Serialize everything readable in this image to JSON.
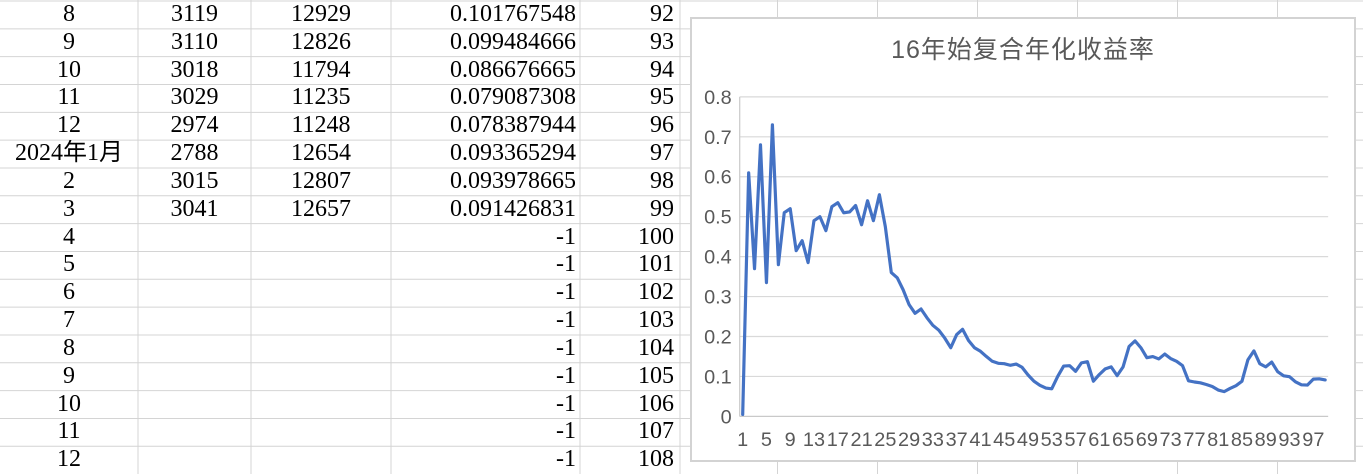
{
  "table": {
    "rows": [
      [
        "8",
        "3119",
        "12929",
        "0.101767548",
        "92"
      ],
      [
        "9",
        "3110",
        "12826",
        "0.099484666",
        "93"
      ],
      [
        "10",
        "3018",
        "11794",
        "0.086676665",
        "94"
      ],
      [
        "11",
        "3029",
        "11235",
        "0.079087308",
        "95"
      ],
      [
        "12",
        "2974",
        "11248",
        "0.078387944",
        "96"
      ],
      [
        "2024年1月",
        "2788",
        "12654",
        "0.093365294",
        "97"
      ],
      [
        "2",
        "3015",
        "12807",
        "0.093978665",
        "98"
      ],
      [
        "3",
        "3041",
        "12657",
        "0.091426831",
        "99"
      ],
      [
        "4",
        "",
        "",
        "-1",
        "100"
      ],
      [
        "5",
        "",
        "",
        "-1",
        "101"
      ],
      [
        "6",
        "",
        "",
        "-1",
        "102"
      ],
      [
        "7",
        "",
        "",
        "-1",
        "103"
      ],
      [
        "8",
        "",
        "",
        "-1",
        "104"
      ],
      [
        "9",
        "",
        "",
        "-1",
        "105"
      ],
      [
        "10",
        "",
        "",
        "-1",
        "106"
      ],
      [
        "11",
        "",
        "",
        "-1",
        "107"
      ],
      [
        "12",
        "",
        "",
        "-1",
        "108"
      ]
    ]
  },
  "chart_data": {
    "type": "line",
    "title": "16年始复合年化收益率",
    "x_range": [
      1,
      99
    ],
    "values": [
      0.005,
      0.61,
      0.37,
      0.68,
      0.335,
      0.73,
      0.38,
      0.51,
      0.52,
      0.415,
      0.44,
      0.385,
      0.49,
      0.5,
      0.465,
      0.525,
      0.535,
      0.51,
      0.512,
      0.528,
      0.48,
      0.54,
      0.49,
      0.555,
      0.475,
      0.36,
      0.347,
      0.317,
      0.28,
      0.258,
      0.269,
      0.247,
      0.228,
      0.216,
      0.196,
      0.172,
      0.205,
      0.218,
      0.19,
      0.172,
      0.163,
      0.15,
      0.138,
      0.133,
      0.132,
      0.128,
      0.131,
      0.123,
      0.104,
      0.088,
      0.078,
      0.071,
      0.069,
      0.1,
      0.126,
      0.127,
      0.113,
      0.134,
      0.137,
      0.088,
      0.105,
      0.119,
      0.124,
      0.102,
      0.124,
      0.175,
      0.189,
      0.172,
      0.147,
      0.15,
      0.144,
      0.156,
      0.145,
      0.138,
      0.127,
      0.089,
      0.086,
      0.084,
      0.08,
      0.075,
      0.066,
      0.062,
      0.07,
      0.077,
      0.088,
      0.142,
      0.164,
      0.132,
      0.124,
      0.136,
      0.112,
      0.101767548,
      0.099484666,
      0.086676665,
      0.079087308,
      0.078387944,
      0.093365294,
      0.093978665,
      0.091426831
    ],
    "x_tick_labels": [
      "1",
      "5",
      "9",
      "13",
      "17",
      "21",
      "25",
      "29",
      "33",
      "37",
      "41",
      "45",
      "49",
      "53",
      "57",
      "61",
      "65",
      "69",
      "73",
      "77",
      "81",
      "85",
      "89",
      "93",
      "97"
    ],
    "y_tick_labels": [
      "0",
      "0.1",
      "0.2",
      "0.3",
      "0.4",
      "0.5",
      "0.6",
      "0.7",
      "0.8"
    ],
    "ylim": [
      0,
      0.8
    ],
    "grid": true,
    "legend": "none",
    "line_color": "#4472c4",
    "gridline_color": "#d9d9d9",
    "axis_line_color": "#c9c9c9",
    "label_color": "#595959",
    "title_color": "#595959"
  },
  "sheet_colors": {
    "gridline": "#d4d4d4",
    "cell_text": "#000000",
    "background": "#ffffff",
    "chart_border": "#d3d3d3"
  }
}
